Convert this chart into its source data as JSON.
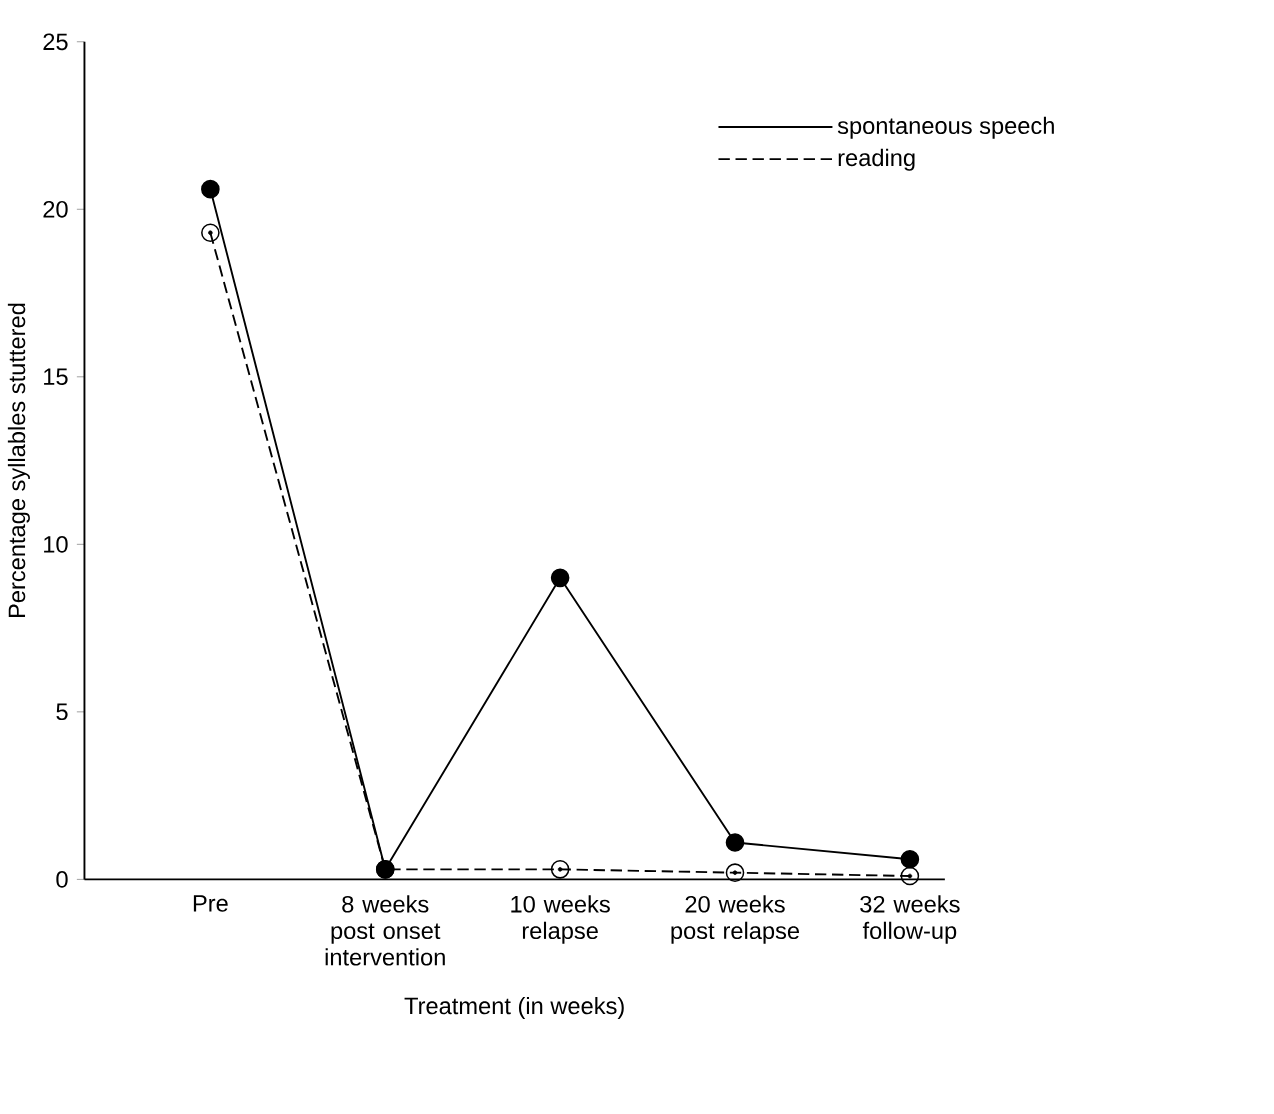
{
  "chart_data": {
    "type": "line",
    "xlabel": "Treatment (in weeks)",
    "ylabel": "Percentage syllables stuttered",
    "categories": [
      "Pre",
      "8 weeks post onset intervention",
      "10 weeks relapse",
      "20 weeks post relapse",
      "32 weeks follow-up"
    ],
    "series": [
      {
        "name": "spontaneous speech",
        "color": "#000000",
        "line_style": "solid",
        "values": [
          20.6,
          0.3,
          9.0,
          1.1,
          0.6
        ]
      },
      {
        "name": "reading",
        "color": "#000000",
        "line_style": "dashed",
        "values": [
          19.3,
          0.3,
          0.3,
          0.2,
          0.1
        ]
      }
    ],
    "ylim": [
      0,
      25
    ],
    "yticks": [
      0,
      5,
      10,
      15,
      20,
      25
    ],
    "marker": "circle",
    "legend": "top right",
    "grid": false
  }
}
